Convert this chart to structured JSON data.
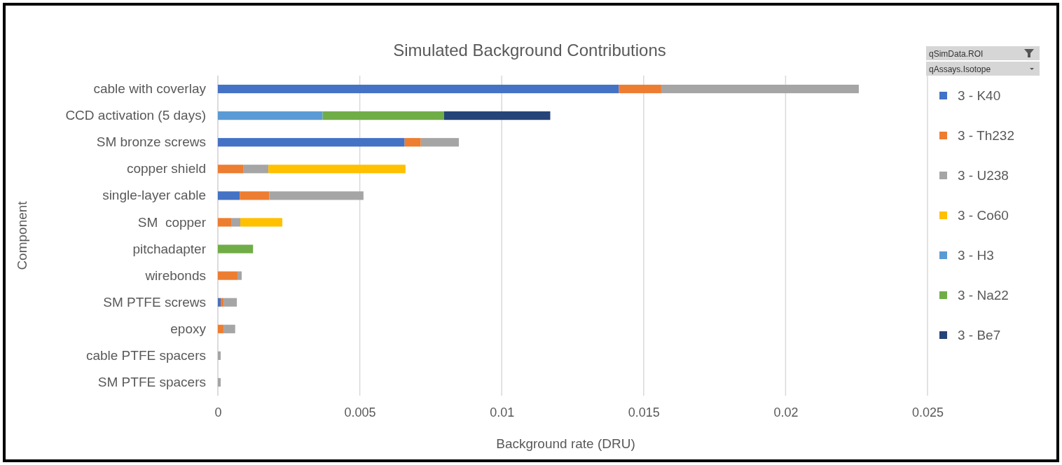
{
  "chart_data": {
    "type": "bar",
    "orientation": "horizontal",
    "stacked": true,
    "title": "Simulated Background Contributions",
    "xlabel": "Background rate (DRU)",
    "ylabel": "Component",
    "categories": [
      "cable with coverlay",
      "CCD activation (5 days)",
      "SM bronze screws",
      "copper shield",
      "single-layer cable",
      "SM  copper",
      "pitchadapter",
      "wirebonds",
      "SM PTFE screws",
      "epoxy",
      "cable PTFE spacers",
      "SM PTFE spacers"
    ],
    "series": [
      {
        "name": "3 - K40",
        "color": "#4472c4",
        "values": [
          0.01413,
          null,
          0.00658,
          null,
          0.00077,
          null,
          null,
          null,
          0.0001,
          null,
          null,
          null
        ]
      },
      {
        "name": "3 - Th232",
        "color": "#ed7d31",
        "values": [
          0.00149,
          null,
          0.00057,
          0.00089,
          0.00104,
          0.00047,
          null,
          0.00069,
          0.0001,
          0.0002,
          null,
          null
        ]
      },
      {
        "name": "3 - U238",
        "color": "#a5a5a5",
        "values": [
          0.00696,
          null,
          0.00134,
          0.00089,
          0.00332,
          0.00032,
          null,
          0.00015,
          0.00047,
          0.00041,
          0.0001,
          0.0001
        ]
      },
      {
        "name": "3 - Co60",
        "color": "#ffc000",
        "values": [
          null,
          null,
          null,
          0.00483,
          null,
          0.00148,
          null,
          null,
          null,
          null,
          null,
          null
        ]
      },
      {
        "name": "3 - H3",
        "color": "#5b9bd5",
        "values": [
          null,
          0.00369,
          null,
          null,
          null,
          null,
          null,
          null,
          null,
          null,
          null,
          null
        ]
      },
      {
        "name": "3 - Na22",
        "color": "#70ad47",
        "values": [
          null,
          0.00428,
          null,
          null,
          null,
          null,
          0.00124,
          null,
          null,
          null,
          null,
          null
        ]
      },
      {
        "name": "3 - Be7",
        "color": "#264478",
        "values": [
          null,
          0.00374,
          null,
          null,
          null,
          null,
          null,
          null,
          null,
          null,
          null,
          null
        ]
      }
    ],
    "xlim": [
      0,
      0.025
    ],
    "xticks": [
      0,
      0.005,
      0.01,
      0.015,
      0.02,
      0.025
    ],
    "grid": "x",
    "legend": "right",
    "annotations": [
      "qSimData.ROI",
      "qAssays.Isotope"
    ]
  }
}
